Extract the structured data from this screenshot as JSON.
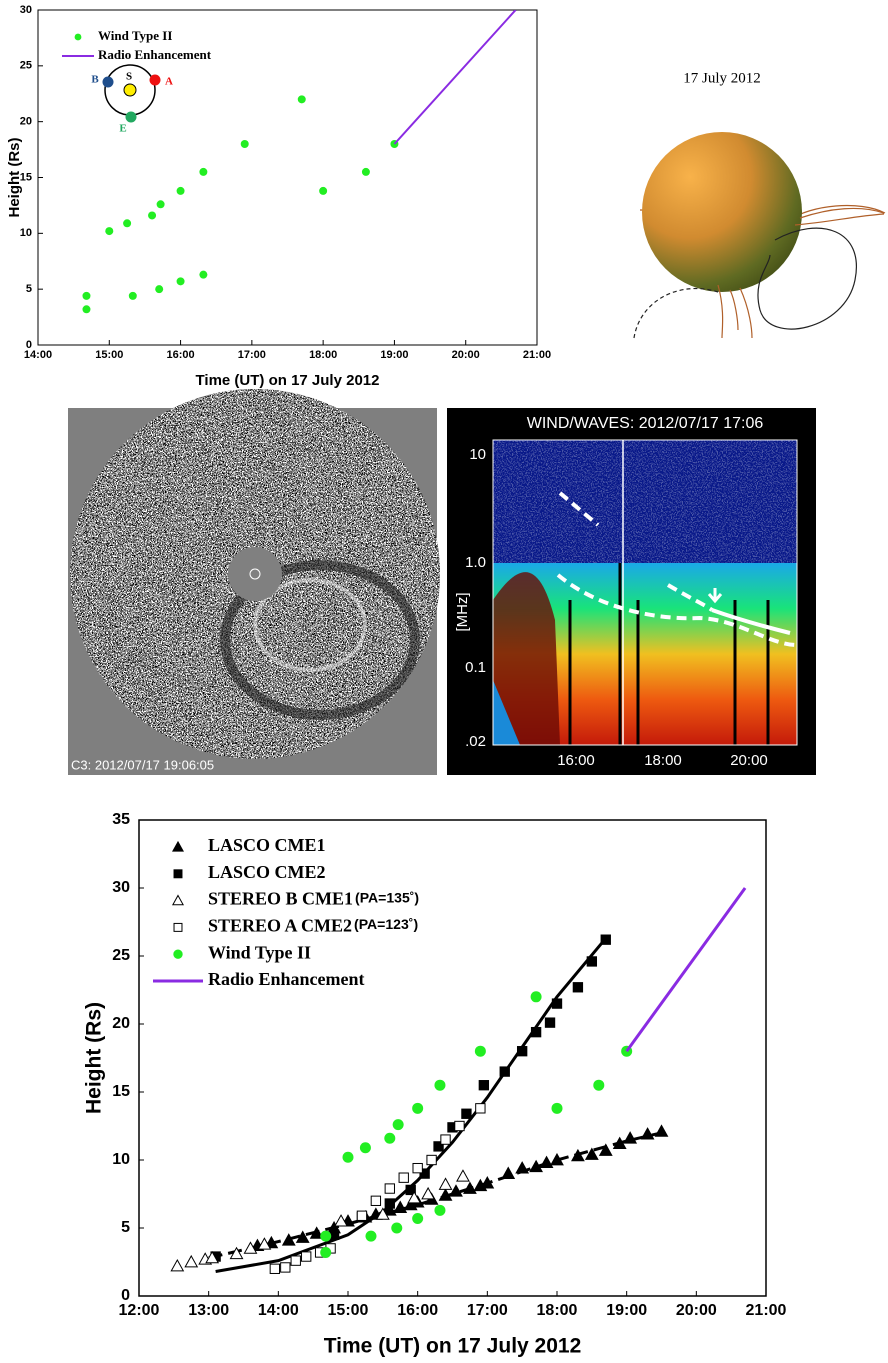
{
  "chart_data": [
    {
      "type": "scatter",
      "x_label": "Time (UT) on 17 July 2012",
      "y_label": "Height (Rs)",
      "xlim": [
        14,
        21
      ],
      "ylim": [
        0,
        30
      ],
      "xticks": [
        {
          "value": 14,
          "label": "14:00"
        },
        {
          "value": 15,
          "label": "15:00"
        },
        {
          "value": 16,
          "label": "16:00"
        },
        {
          "value": 17,
          "label": "17:00"
        },
        {
          "value": 18,
          "label": "18:00"
        },
        {
          "value": 19,
          "label": "19:00"
        },
        {
          "value": 20,
          "label": "20:00"
        },
        {
          "value": 21,
          "label": "21:00"
        }
      ],
      "yticks": [
        0,
        5,
        10,
        15,
        20,
        25,
        30
      ],
      "series": [
        {
          "name": "Wind Type II",
          "color": "#22ee22",
          "marker": "circle",
          "x": [
            14.68,
            14.68,
            15.0,
            15.25,
            15.33,
            15.6,
            15.72,
            15.7,
            16.0,
            16.0,
            16.32,
            16.32,
            16.9,
            17.7,
            18.0,
            18.6,
            19.0
          ],
          "values": [
            4.4,
            3.2,
            10.2,
            10.9,
            4.4,
            11.6,
            12.6,
            5.0,
            13.8,
            5.7,
            15.5,
            6.3,
            18.0,
            22.0,
            13.8,
            15.5,
            18.0
          ]
        },
        {
          "name": "Radio Enhancement",
          "color": "#8a2be2",
          "marker": "line",
          "x": [
            19.0,
            20.7
          ],
          "values": [
            18.0,
            30.0
          ]
        }
      ],
      "inset_labels": [
        "B",
        "S",
        "A",
        "E"
      ]
    },
    {
      "type": "scatter",
      "x_label": "Time (UT) on 17 July 2012",
      "y_label": "Height (Rs)",
      "xlim": [
        12,
        21
      ],
      "ylim": [
        0,
        35
      ],
      "xticks": [
        {
          "value": 12,
          "label": "12:00"
        },
        {
          "value": 13,
          "label": "13:00"
        },
        {
          "value": 14,
          "label": "14:00"
        },
        {
          "value": 15,
          "label": "15:00"
        },
        {
          "value": 16,
          "label": "16:00"
        },
        {
          "value": 17,
          "label": "17:00"
        },
        {
          "value": 18,
          "label": "18:00"
        },
        {
          "value": 19,
          "label": "19:00"
        },
        {
          "value": 20,
          "label": "20:00"
        },
        {
          "value": 21,
          "label": "21:00"
        }
      ],
      "yticks": [
        0,
        5,
        10,
        15,
        20,
        25,
        30,
        35
      ],
      "series": [
        {
          "name": "LASCO CME1",
          "color": "#000000",
          "marker": "triangle",
          "x": [
            13.7,
            13.9,
            14.15,
            14.35,
            14.55,
            14.8,
            15.0,
            15.25,
            15.4,
            15.6,
            15.75,
            15.9,
            16.0,
            16.2,
            16.4,
            16.55,
            16.75,
            16.9,
            17.0,
            17.3,
            17.5,
            17.7,
            17.85,
            18.0,
            18.3,
            18.5,
            18.7,
            18.9,
            19.05,
            19.3,
            19.5
          ],
          "values": [
            3.7,
            3.9,
            4.1,
            4.3,
            4.6,
            5.0,
            5.5,
            5.8,
            6.0,
            6.3,
            6.5,
            6.7,
            6.9,
            7.1,
            7.4,
            7.7,
            7.9,
            8.1,
            8.3,
            9.0,
            9.4,
            9.5,
            9.8,
            10.0,
            10.3,
            10.4,
            10.7,
            11.2,
            11.6,
            11.9,
            12.1
          ]
        },
        {
          "name": "LASCO CME2",
          "color": "#000000",
          "marker": "square",
          "x": [
            13.1,
            14.8,
            15.2,
            15.6,
            15.9,
            16.1,
            16.3,
            16.5,
            16.7,
            16.95,
            17.25,
            17.5,
            17.7,
            17.9,
            18.0,
            18.3,
            18.5,
            18.7
          ],
          "values": [
            2.9,
            4.5,
            5.8,
            6.8,
            7.8,
            9.0,
            11.0,
            12.4,
            13.4,
            15.5,
            16.5,
            18.0,
            19.4,
            20.1,
            21.5,
            22.7,
            24.6,
            26.2
          ]
        },
        {
          "name": "STEREO B CME1",
          "pa": "(PA=135˚)",
          "color": "#000000",
          "marker": "triangle-open",
          "x": [
            12.55,
            12.75,
            12.95,
            13.05,
            13.4,
            13.6,
            13.8,
            14.9,
            15.5,
            15.95,
            16.15,
            16.4,
            16.65
          ],
          "values": [
            2.2,
            2.5,
            2.7,
            2.8,
            3.1,
            3.5,
            3.8,
            5.5,
            6.0,
            7.2,
            7.5,
            8.2,
            8.8
          ]
        },
        {
          "name": "STEREO A CME2",
          "pa": "(PA=123˚)",
          "color": "#000000",
          "marker": "square-open",
          "x": [
            13.95,
            14.1,
            14.25,
            14.4,
            14.6,
            14.75,
            15.2,
            15.4,
            15.6,
            15.8,
            16.0,
            16.2,
            16.4,
            16.6,
            16.9
          ],
          "values": [
            2.0,
            2.1,
            2.6,
            2.9,
            3.2,
            3.5,
            5.9,
            7.0,
            7.9,
            8.7,
            9.4,
            10.0,
            11.5,
            12.5,
            13.8
          ]
        },
        {
          "name": "Wind Type II",
          "color": "#22ee22",
          "marker": "circle",
          "x": [
            14.68,
            14.68,
            15.0,
            15.25,
            15.33,
            15.6,
            15.72,
            15.7,
            16.0,
            16.0,
            16.32,
            16.32,
            16.9,
            17.7,
            18.0,
            18.6,
            19.0
          ],
          "values": [
            4.4,
            3.2,
            10.2,
            10.9,
            4.4,
            11.6,
            12.6,
            5.0,
            13.8,
            5.7,
            15.5,
            6.3,
            18.0,
            22.0,
            13.8,
            15.5,
            18.0
          ]
        },
        {
          "name": "Radio Enhancement",
          "color": "#8a2be2",
          "marker": "line",
          "x": [
            19.0,
            20.7
          ],
          "values": [
            18.0,
            30.0
          ]
        }
      ],
      "fits": [
        {
          "dash": false,
          "x": [
            13.1,
            14,
            15,
            15.5,
            16,
            16.5,
            17,
            17.5,
            18,
            18.7
          ],
          "values": [
            1.8,
            2.6,
            4.5,
            6.2,
            8.5,
            11.3,
            14.6,
            18.3,
            22.0,
            26.3
          ]
        },
        {
          "dash": true,
          "x": [
            13.0,
            14,
            15,
            16,
            17,
            18,
            19,
            19.5
          ],
          "values": [
            2.8,
            4.0,
            5.3,
            6.7,
            8.3,
            10.0,
            11.4,
            12.0
          ]
        }
      ]
    }
  ],
  "sun_panel": {
    "title": "17 July 2012"
  },
  "c3_image": {
    "label": "C3: 2012/07/17 19:06:05"
  },
  "spectrogram": {
    "title": "WIND/WAVES: 2012/07/17 17:06",
    "y_label": "[MHz]",
    "y_tick_labels": [
      "10",
      "1.0",
      "0.1",
      ".02"
    ],
    "x_tick_labels": [
      "16:00",
      "18:00",
      "20:00"
    ]
  }
}
